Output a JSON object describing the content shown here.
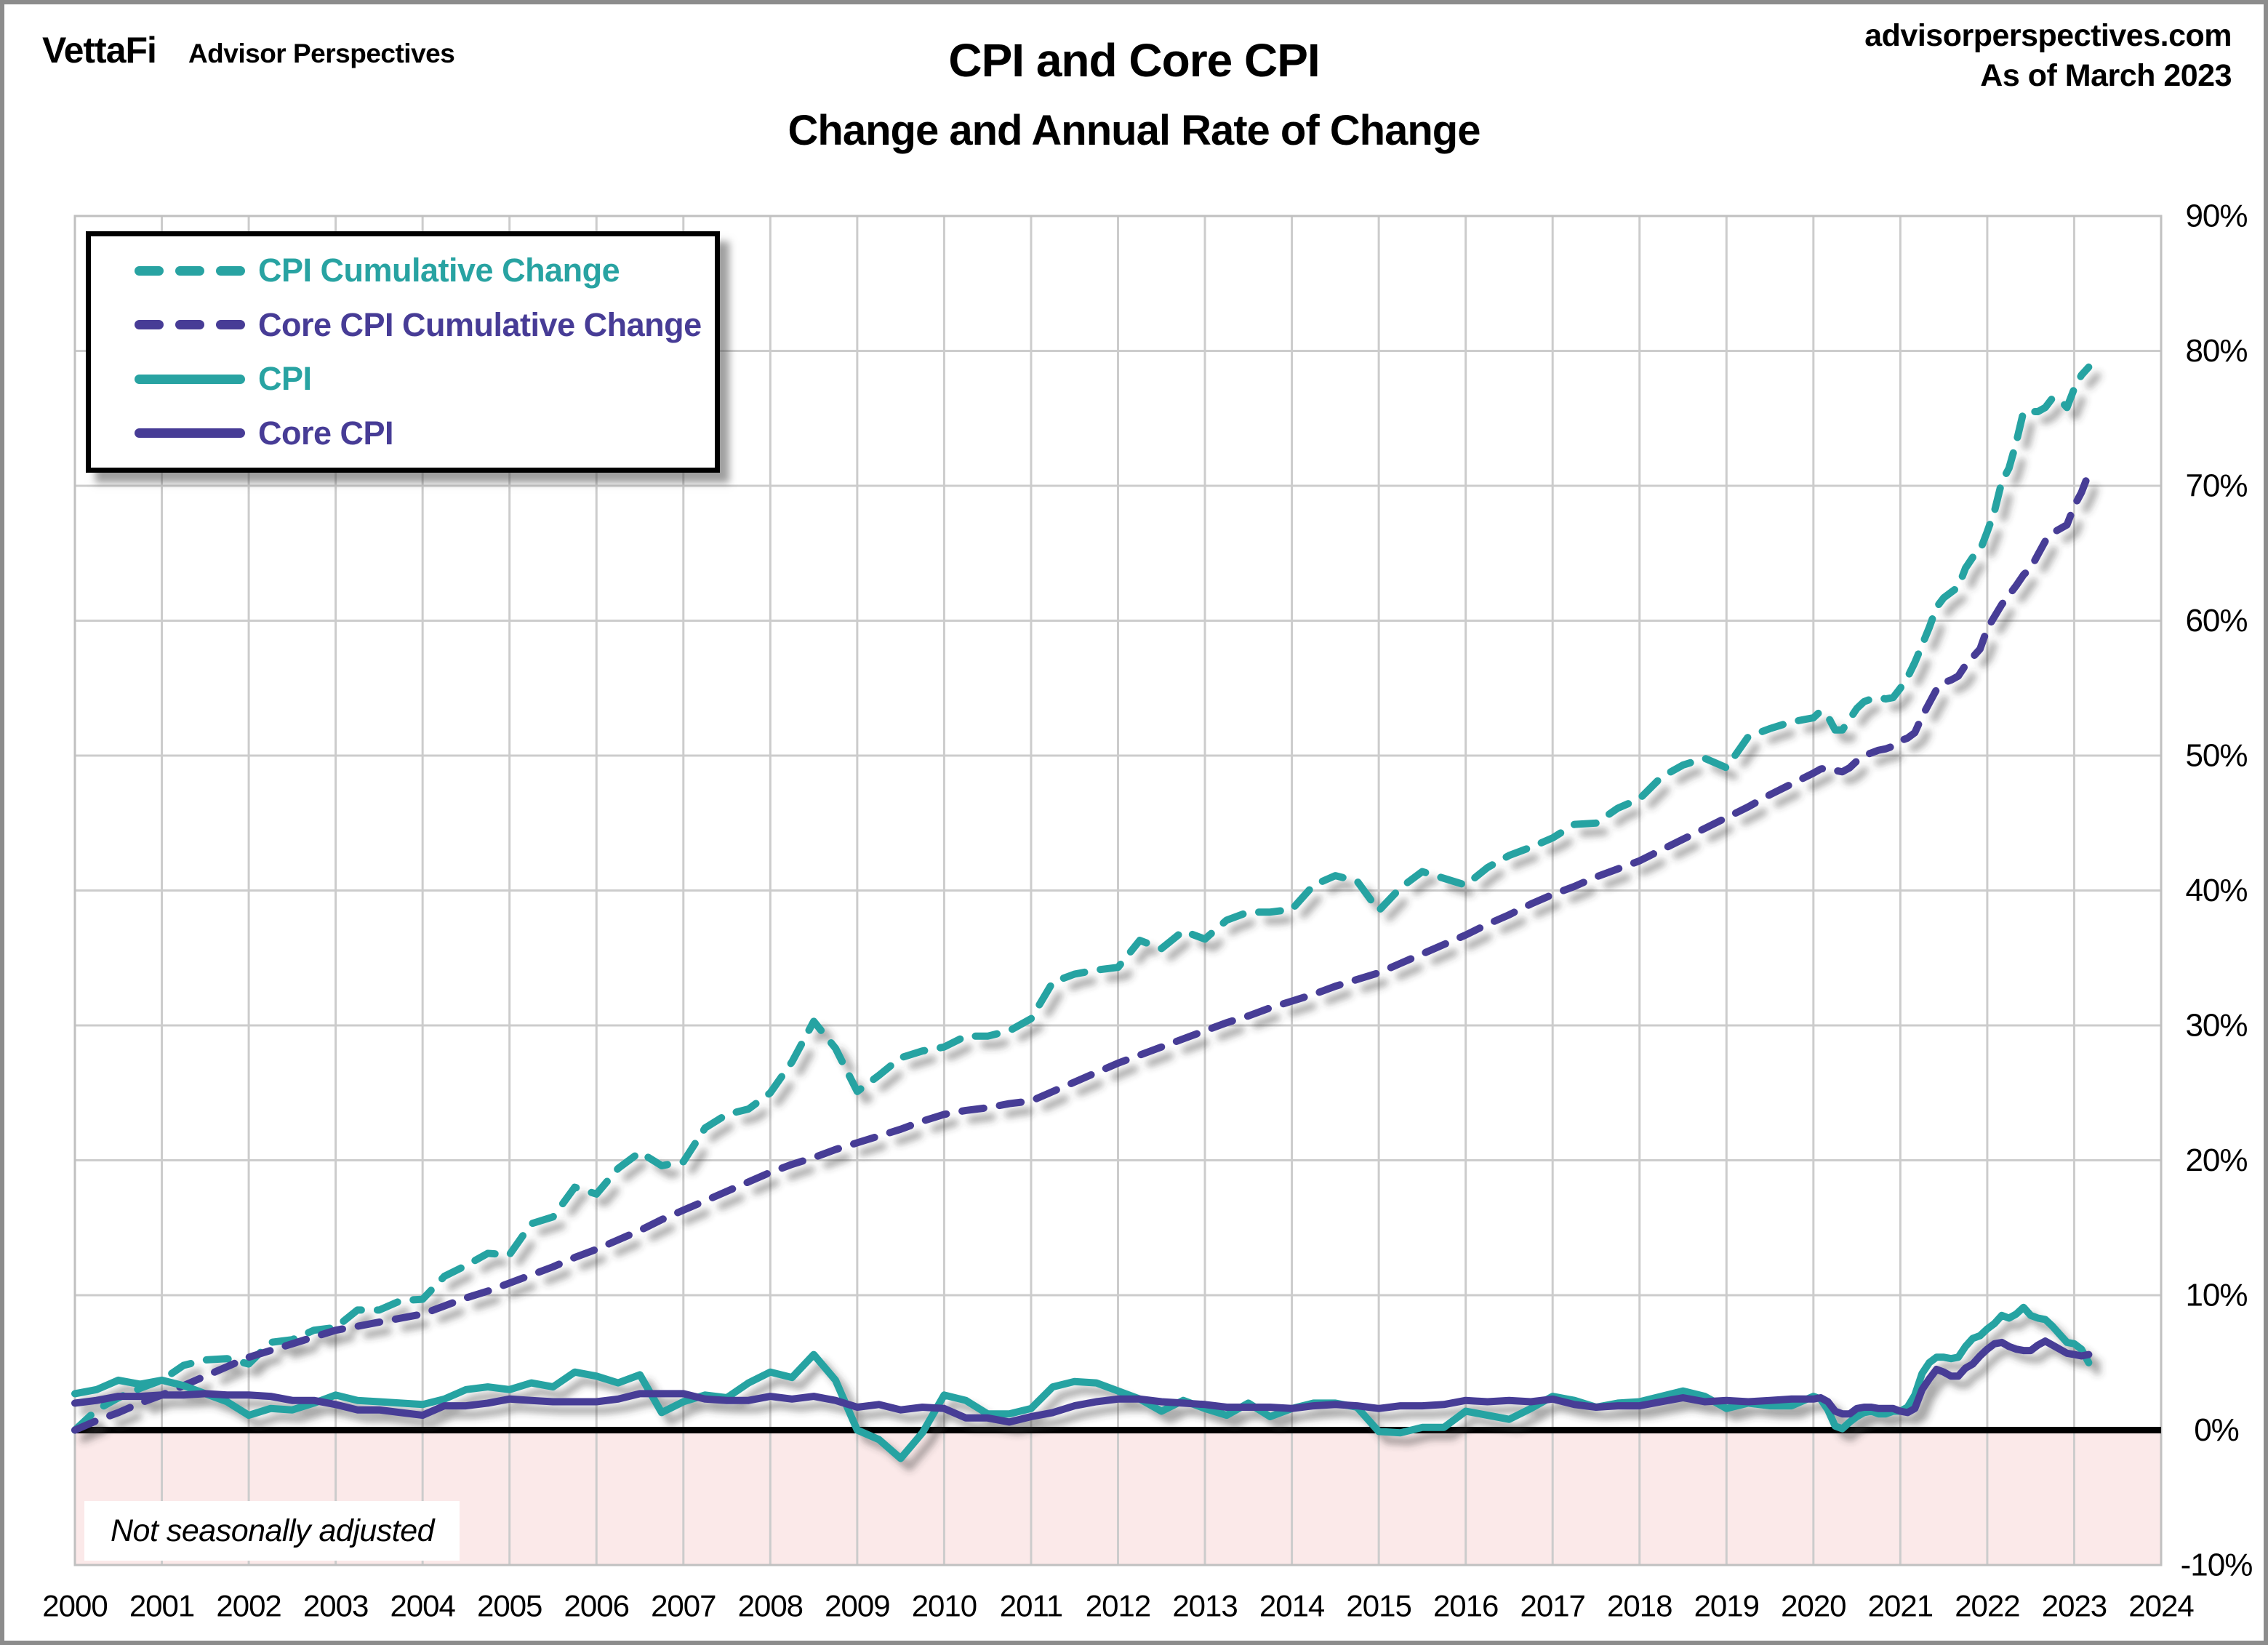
{
  "header": {
    "logo_primary": "VettaFi",
    "logo_secondary": "Advisor Perspectives",
    "title": "CPI and Core CPI",
    "subtitle": "Change and Annual Rate of Change",
    "site": "advisorperspectives.com",
    "as_of": "As of March 2023"
  },
  "annotation": {
    "note": "Not seasonally adjusted"
  },
  "colors": {
    "teal": "#28A3A2",
    "purple": "#473C96",
    "pink": "#FBE9E9",
    "grid": "#CCCCCC",
    "plot_border": "#C0C0C0",
    "zero_line": "#000000"
  },
  "legend": {
    "items": [
      {
        "label": "CPI Cumulative Change",
        "color": "teal",
        "dashed": true
      },
      {
        "label": "Core CPI Cumulative Change",
        "color": "purple",
        "dashed": true
      },
      {
        "label": "CPI",
        "color": "teal",
        "dashed": false
      },
      {
        "label": "Core CPI",
        "color": "purple",
        "dashed": false
      }
    ]
  },
  "chart_data": {
    "type": "line",
    "title": "CPI and Core CPI",
    "subtitle": "Change and Annual Rate of Change",
    "xlabel": "",
    "ylabel": "",
    "xlim": [
      2000,
      2024
    ],
    "ylim": [
      -10,
      90
    ],
    "grid": true,
    "legend_position": "top-left",
    "below_zero_fill": "#FBE9E9",
    "x_ticks": [
      2000,
      2001,
      2002,
      2003,
      2004,
      2005,
      2006,
      2007,
      2008,
      2009,
      2010,
      2011,
      2012,
      2013,
      2014,
      2015,
      2016,
      2017,
      2018,
      2019,
      2020,
      2021,
      2022,
      2023,
      2024
    ],
    "y_ticks": [
      {
        "v": 90,
        "label": "90%"
      },
      {
        "v": 80,
        "label": "80%"
      },
      {
        "v": 70,
        "label": "70%"
      },
      {
        "v": 60,
        "label": "60%"
      },
      {
        "v": 50,
        "label": "50%"
      },
      {
        "v": 40,
        "label": "40%"
      },
      {
        "v": 30,
        "label": "30%"
      },
      {
        "v": 20,
        "label": "20%"
      },
      {
        "v": 10,
        "label": "10%"
      },
      {
        "v": 0,
        "label": "0%"
      },
      {
        "v": -10,
        "label": "-10%"
      }
    ],
    "x": [
      2000.0,
      2000.25,
      2000.5,
      2000.75,
      2001.0,
      2001.25,
      2001.5,
      2001.75,
      2002.0,
      2002.25,
      2002.5,
      2002.75,
      2003.0,
      2003.25,
      2003.5,
      2003.75,
      2004.0,
      2004.25,
      2004.5,
      2004.75,
      2005.0,
      2005.25,
      2005.5,
      2005.75,
      2006.0,
      2006.25,
      2006.5,
      2006.75,
      2007.0,
      2007.25,
      2007.5,
      2007.75,
      2008.0,
      2008.25,
      2008.5,
      2008.75,
      2009.0,
      2009.25,
      2009.5,
      2009.75,
      2010.0,
      2010.25,
      2010.5,
      2010.75,
      2011.0,
      2011.25,
      2011.5,
      2011.75,
      2012.0,
      2012.25,
      2012.5,
      2012.75,
      2013.0,
      2013.25,
      2013.5,
      2013.75,
      2014.0,
      2014.25,
      2014.5,
      2014.75,
      2015.0,
      2015.25,
      2015.5,
      2015.75,
      2016.0,
      2016.25,
      2016.5,
      2016.75,
      2017.0,
      2017.25,
      2017.5,
      2017.75,
      2018.0,
      2018.25,
      2018.5,
      2018.75,
      2019.0,
      2019.25,
      2019.5,
      2019.75,
      2020.0,
      2020.083,
      2020.167,
      2020.25,
      2020.333,
      2020.417,
      2020.5,
      2020.583,
      2020.667,
      2020.75,
      2020.833,
      2020.917,
      2021.0,
      2021.083,
      2021.167,
      2021.25,
      2021.333,
      2021.417,
      2021.5,
      2021.583,
      2021.667,
      2021.75,
      2021.833,
      2021.917,
      2022.0,
      2022.083,
      2022.167,
      2022.25,
      2022.333,
      2022.417,
      2022.5,
      2022.583,
      2022.667,
      2022.75,
      2022.833,
      2022.917,
      2023.0,
      2023.083,
      2023.167
    ],
    "series": [
      {
        "name": "CPI Cumulative Change",
        "color": "teal",
        "dashed": true,
        "values": [
          0.0,
          1.5,
          2.4,
          3.1,
          3.7,
          4.8,
          5.2,
          5.3,
          4.9,
          6.5,
          6.7,
          7.4,
          7.6,
          8.9,
          8.9,
          9.6,
          9.7,
          11.4,
          12.2,
          13.1,
          13.0,
          15.3,
          15.8,
          18.0,
          17.5,
          19.4,
          20.6,
          19.6,
          19.9,
          22.4,
          23.4,
          23.8,
          25.0,
          27.3,
          30.3,
          28.3,
          25.1,
          26.3,
          27.6,
          28.1,
          28.4,
          29.2,
          29.2,
          29.6,
          30.5,
          33.2,
          33.8,
          34.1,
          34.3,
          36.3,
          35.7,
          37.0,
          36.4,
          37.8,
          38.4,
          38.4,
          38.6,
          40.4,
          41.1,
          40.7,
          38.5,
          40.2,
          41.4,
          40.9,
          40.4,
          41.7,
          42.6,
          43.2,
          43.9,
          44.9,
          45.0,
          46.1,
          46.8,
          48.4,
          49.3,
          49.8,
          49.1,
          51.4,
          52.0,
          52.5,
          52.8,
          53.3,
          52.9,
          51.9,
          51.9,
          52.7,
          53.5,
          54.0,
          54.2,
          54.3,
          54.2,
          54.3,
          55.0,
          55.8,
          56.9,
          58.2,
          59.5,
          61.0,
          61.7,
          62.1,
          62.5,
          63.9,
          64.7,
          65.2,
          66.6,
          68.1,
          70.3,
          71.3,
          73.2,
          75.5,
          75.5,
          75.5,
          75.8,
          76.5,
          76.4,
          75.8,
          77.2,
          78.2,
          78.8
        ]
      },
      {
        "name": "Core CPI Cumulative Change",
        "color": "purple",
        "dashed": true,
        "values": [
          0.0,
          0.7,
          1.3,
          2.0,
          2.6,
          3.3,
          4.0,
          4.7,
          5.4,
          5.9,
          6.4,
          6.9,
          7.4,
          7.7,
          8.0,
          8.3,
          8.6,
          9.2,
          9.8,
          10.3,
          10.9,
          11.5,
          12.1,
          12.8,
          13.4,
          14.1,
          14.8,
          15.6,
          16.3,
          17.0,
          17.7,
          18.4,
          19.1,
          19.7,
          20.2,
          20.8,
          21.3,
          21.8,
          22.3,
          22.9,
          23.4,
          23.7,
          23.9,
          24.2,
          24.4,
          25.1,
          25.8,
          26.5,
          27.2,
          27.8,
          28.4,
          29.0,
          29.6,
          30.2,
          30.7,
          31.3,
          31.8,
          32.3,
          32.9,
          33.4,
          33.9,
          34.6,
          35.3,
          36.0,
          36.7,
          37.5,
          38.2,
          39.0,
          39.7,
          40.3,
          41.0,
          41.6,
          42.2,
          43.0,
          43.8,
          44.6,
          45.4,
          46.2,
          47.1,
          47.9,
          48.7,
          49.0,
          49.1,
          48.9,
          48.8,
          49.1,
          49.6,
          50.0,
          50.2,
          50.4,
          50.5,
          50.7,
          51.1,
          51.3,
          51.7,
          52.9,
          53.9,
          54.9,
          55.4,
          55.6,
          55.9,
          56.7,
          57.3,
          57.9,
          59.4,
          60.3,
          61.2,
          61.9,
          62.6,
          63.4,
          63.9,
          64.9,
          65.9,
          66.5,
          66.8,
          67.1,
          68.5,
          69.5,
          70.9
        ]
      },
      {
        "name": "CPI",
        "color": "teal",
        "dashed": false,
        "values": [
          2.7,
          3.0,
          3.7,
          3.4,
          3.7,
          3.3,
          2.7,
          2.1,
          1.1,
          1.6,
          1.5,
          2.0,
          2.6,
          2.2,
          2.1,
          2.0,
          1.9,
          2.3,
          3.0,
          3.2,
          3.0,
          3.5,
          3.2,
          4.3,
          4.0,
          3.5,
          4.1,
          1.3,
          2.1,
          2.6,
          2.4,
          3.5,
          4.3,
          3.9,
          5.6,
          3.7,
          0.0,
          -0.7,
          -2.1,
          -0.2,
          2.6,
          2.2,
          1.2,
          1.2,
          1.6,
          3.2,
          3.6,
          3.5,
          2.9,
          2.3,
          1.4,
          2.2,
          1.6,
          1.1,
          2.0,
          1.0,
          1.6,
          2.0,
          2.0,
          1.7,
          -0.1,
          -0.2,
          0.2,
          0.2,
          1.4,
          1.1,
          0.8,
          1.6,
          2.5,
          2.2,
          1.7,
          2.0,
          2.1,
          2.5,
          2.9,
          2.5,
          1.6,
          2.0,
          1.8,
          1.8,
          2.5,
          2.3,
          1.5,
          0.3,
          0.1,
          0.6,
          1.0,
          1.3,
          1.4,
          1.2,
          1.2,
          1.4,
          1.4,
          1.7,
          2.6,
          4.2,
          5.0,
          5.4,
          5.4,
          5.3,
          5.4,
          6.2,
          6.8,
          7.0,
          7.5,
          7.9,
          8.5,
          8.3,
          8.6,
          9.1,
          8.5,
          8.3,
          8.2,
          7.7,
          7.1,
          6.5,
          6.4,
          6.0,
          5.0
        ]
      },
      {
        "name": "Core CPI",
        "color": "purple",
        "dashed": false,
        "values": [
          2.0,
          2.2,
          2.5,
          2.5,
          2.6,
          2.6,
          2.7,
          2.6,
          2.6,
          2.5,
          2.2,
          2.2,
          1.9,
          1.5,
          1.5,
          1.3,
          1.1,
          1.8,
          1.8,
          2.0,
          2.3,
          2.2,
          2.1,
          2.1,
          2.1,
          2.3,
          2.7,
          2.7,
          2.7,
          2.3,
          2.2,
          2.2,
          2.5,
          2.3,
          2.5,
          2.2,
          1.7,
          1.9,
          1.5,
          1.7,
          1.6,
          0.9,
          0.9,
          0.6,
          1.0,
          1.3,
          1.8,
          2.1,
          2.3,
          2.3,
          2.1,
          2.0,
          1.9,
          1.7,
          1.7,
          1.7,
          1.6,
          1.8,
          1.9,
          1.8,
          1.6,
          1.8,
          1.8,
          1.9,
          2.2,
          2.1,
          2.2,
          2.1,
          2.3,
          1.9,
          1.7,
          1.8,
          1.8,
          2.1,
          2.4,
          2.1,
          2.2,
          2.1,
          2.2,
          2.3,
          2.3,
          2.4,
          2.1,
          1.4,
          1.2,
          1.2,
          1.6,
          1.7,
          1.7,
          1.6,
          1.6,
          1.6,
          1.4,
          1.3,
          1.6,
          3.0,
          3.8,
          4.5,
          4.3,
          4.0,
          4.0,
          4.6,
          4.9,
          5.5,
          6.0,
          6.4,
          6.5,
          6.2,
          6.0,
          5.9,
          5.9,
          6.3,
          6.6,
          6.3,
          6.0,
          5.7,
          5.6,
          5.5,
          5.6
        ]
      }
    ]
  }
}
